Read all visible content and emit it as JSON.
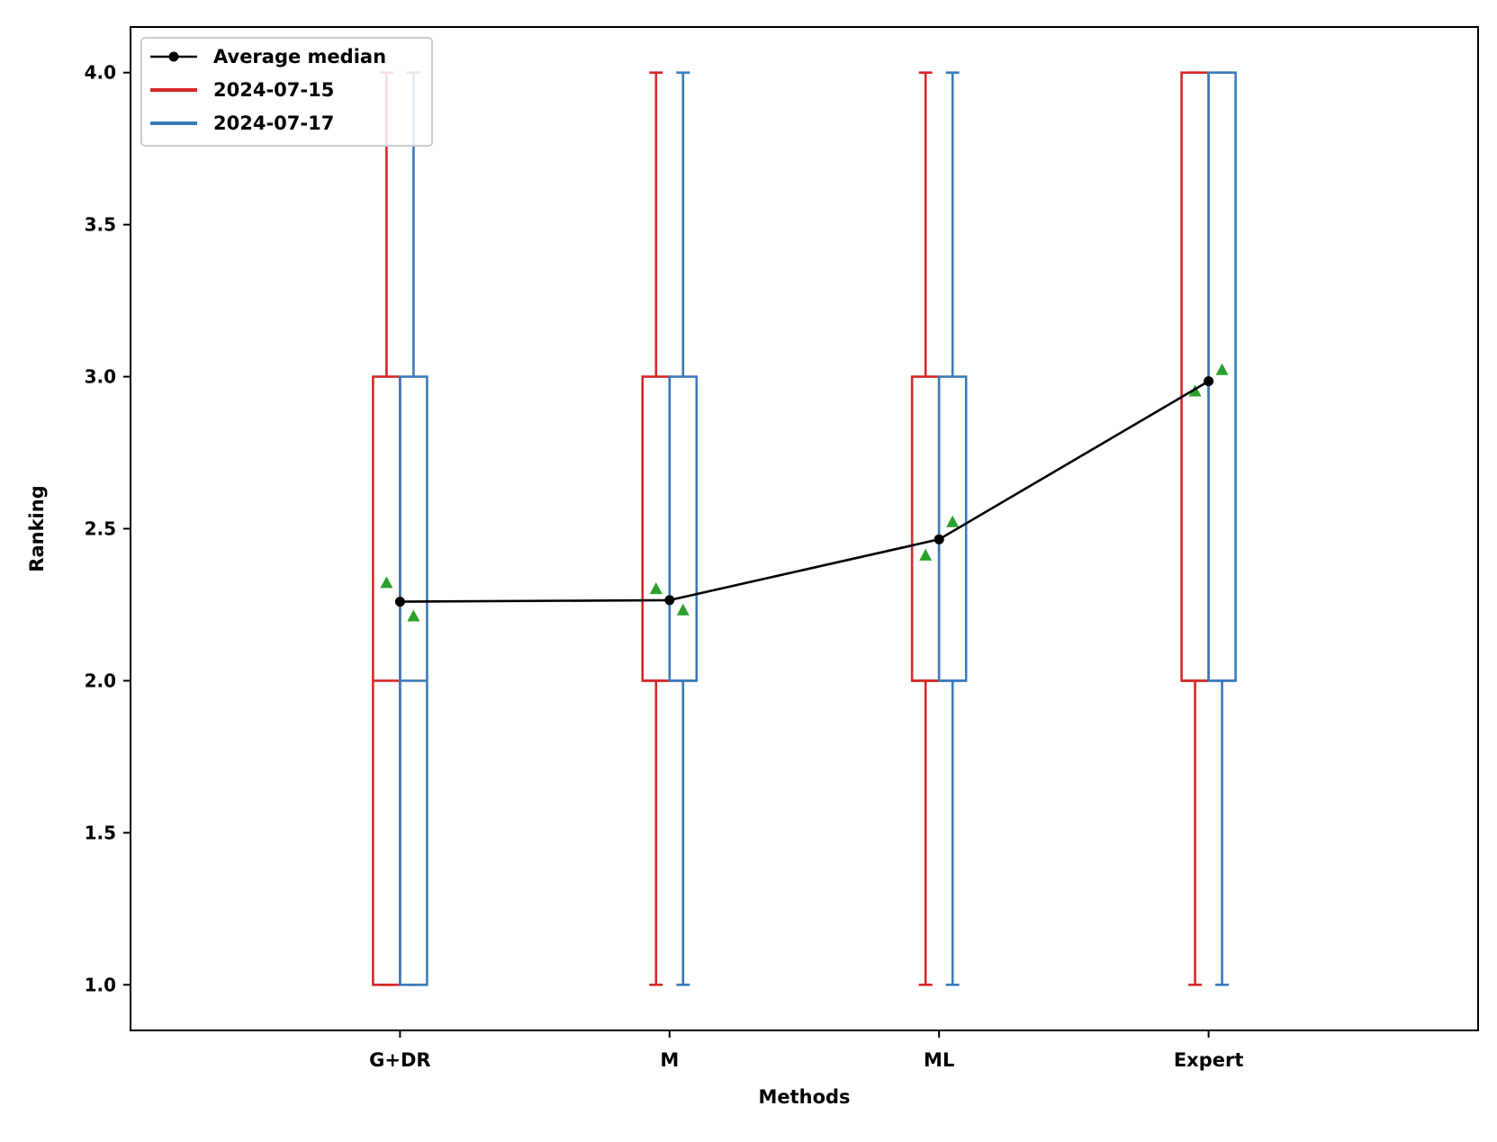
{
  "chart_data": {
    "type": "box",
    "title": "",
    "xlabel": "Methods",
    "ylabel": "Ranking",
    "categories": [
      "G+DR",
      "M",
      "ML",
      "Expert"
    ],
    "ylim": [
      0.85,
      4.15
    ],
    "yticks": [
      1.0,
      1.5,
      2.0,
      2.5,
      3.0,
      3.5,
      4.0
    ],
    "ytick_labels": [
      "1.0",
      "1.5",
      "2.0",
      "2.5",
      "3.0",
      "3.5",
      "4.0"
    ],
    "grid": false,
    "legend_position": "top-left",
    "series": [
      {
        "name": "2024-07-15",
        "color": "#d62728",
        "boxes": [
          {
            "whislo": 1.0,
            "q1": 1.0,
            "median": 2.0,
            "q3": 3.0,
            "whishi": 4.0,
            "mean": 2.32
          },
          {
            "whislo": 1.0,
            "q1": 2.0,
            "median": 2.0,
            "q3": 3.0,
            "whishi": 4.0,
            "mean": 2.3
          },
          {
            "whislo": 1.0,
            "q1": 2.0,
            "median": 2.0,
            "q3": 3.0,
            "whishi": 4.0,
            "mean": 2.41
          },
          {
            "whislo": 1.0,
            "q1": 2.0,
            "median": 2.0,
            "q3": 4.0,
            "whishi": 4.0,
            "mean": 2.95
          }
        ]
      },
      {
        "name": "2024-07-17",
        "color": "#3a7ab8",
        "boxes": [
          {
            "whislo": 1.0,
            "q1": 1.0,
            "median": 2.0,
            "q3": 3.0,
            "whishi": 4.0,
            "mean": 2.21
          },
          {
            "whislo": 1.0,
            "q1": 2.0,
            "median": 2.0,
            "q3": 3.0,
            "whishi": 4.0,
            "mean": 2.23
          },
          {
            "whislo": 1.0,
            "q1": 2.0,
            "median": 2.0,
            "q3": 3.0,
            "whishi": 4.0,
            "mean": 2.52
          },
          {
            "whislo": 1.0,
            "q1": 2.0,
            "median": 2.0,
            "q3": 4.0,
            "whishi": 4.0,
            "mean": 3.02
          }
        ]
      }
    ],
    "line": {
      "name": "Average median",
      "color": "#000000",
      "values": [
        2.26,
        2.265,
        2.465,
        2.985
      ]
    },
    "mean_marker_color": "#2ca02c"
  }
}
